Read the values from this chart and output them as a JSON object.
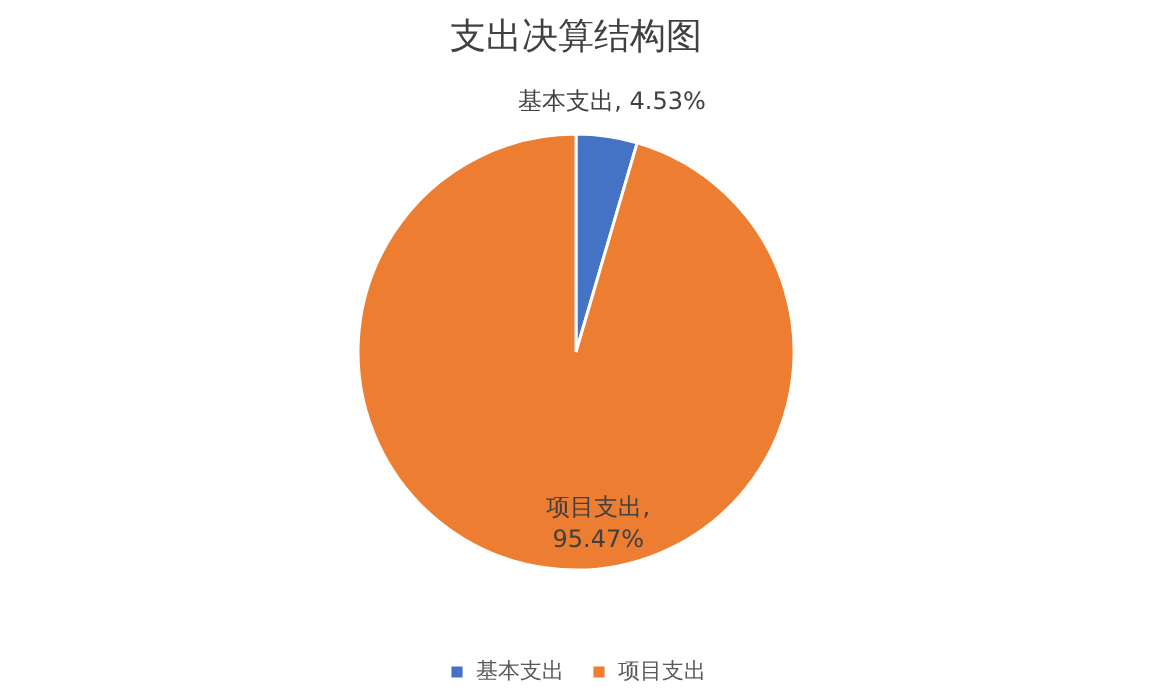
{
  "chart_data": {
    "type": "pie",
    "title": "支出决算结构图",
    "categories": [
      "基本支出",
      "项目支出"
    ],
    "values": [
      4.53,
      95.47
    ],
    "colors": [
      "#4472c4",
      "#ed7d31"
    ],
    "value_labels": [
      "基本支出, 4.53%",
      "项目支出, 95.47%"
    ],
    "legend": "bottom"
  }
}
